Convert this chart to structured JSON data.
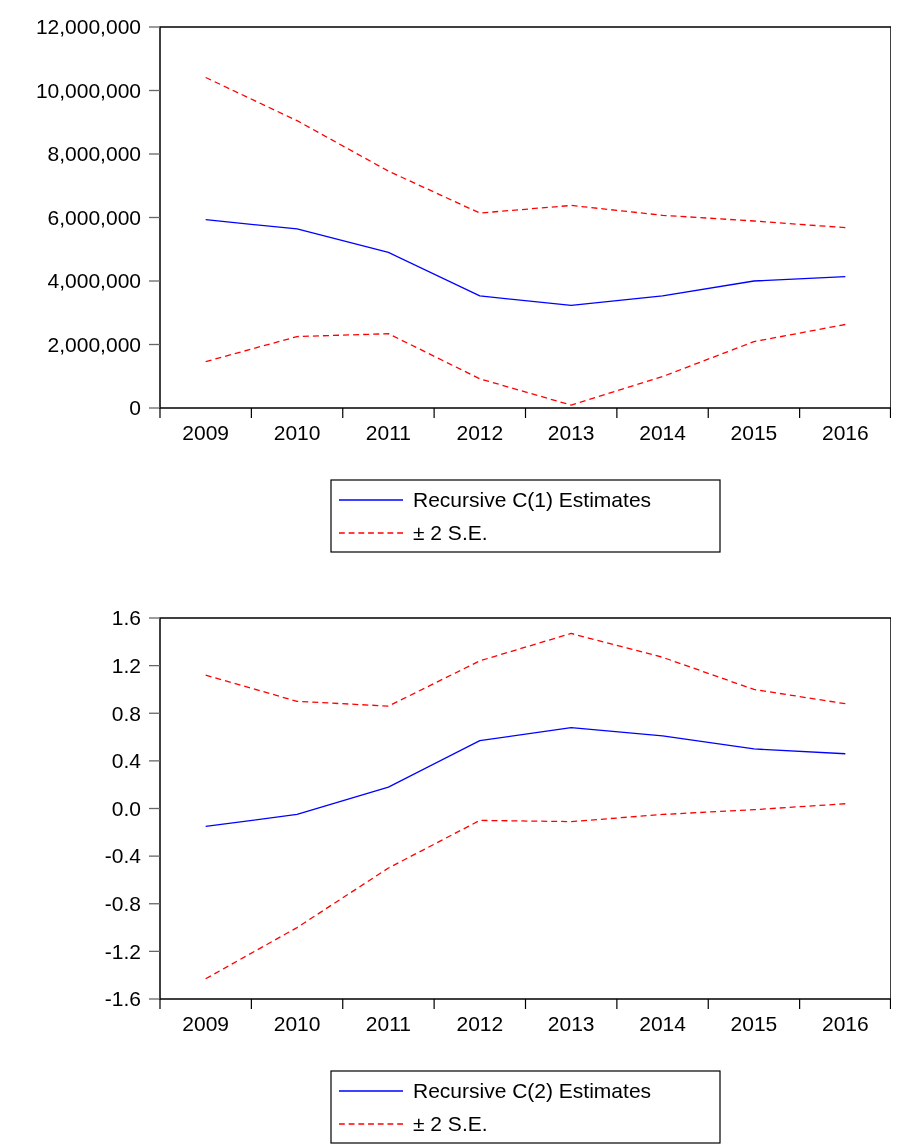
{
  "chart_data": [
    {
      "type": "line",
      "categories": [
        "2009",
        "2010",
        "2011",
        "2012",
        "2013",
        "2014",
        "2015",
        "2016"
      ],
      "ylim": [
        0,
        12000000
      ],
      "yticks": [
        0,
        {
          "value": 2000000,
          "label": "2,000,000"
        },
        {
          "value": 4000000,
          "label": "4,000,000"
        },
        {
          "value": 6000000,
          "label": "6,000,000"
        },
        {
          "value": 8000000,
          "label": "8,000,000"
        },
        {
          "value": 10000000,
          "label": "10,000,000"
        },
        {
          "value": 12000000,
          "label": "12,000,000"
        }
      ],
      "legend": "bottom",
      "series": [
        {
          "name": "Recursive C(1) Estimates",
          "color": "#0000ff",
          "line_style": "solid",
          "values": [
            5930000,
            5640000,
            4900000,
            3530000,
            3230000,
            3530000,
            4000000,
            4140000
          ]
        },
        {
          "name": "± 2 S.E.",
          "color": "#ff0000",
          "line_style": "dashed",
          "values": [
            10410000,
            9050000,
            7460000,
            6140000,
            6380000,
            6070000,
            5890000,
            5680000
          ]
        },
        {
          "color": "#ff0000",
          "line_style": "dashed",
          "values": [
            1460000,
            2250000,
            2340000,
            920000,
            90000,
            990000,
            2090000,
            2630000
          ]
        }
      ]
    },
    {
      "type": "line",
      "categories": [
        "2009",
        "2010",
        "2011",
        "2012",
        "2013",
        "2014",
        "2015",
        "2016"
      ],
      "ylim": [
        -1.6,
        1.6
      ],
      "yticks": [
        -1.6,
        -1.2,
        -0.8,
        -0.4,
        {
          "value": 0,
          "label": "0.0"
        },
        0.4,
        0.8,
        1.2,
        1.6
      ],
      "legend": "bottom",
      "series": [
        {
          "name": "Recursive C(2) Estimates",
          "color": "#0000ff",
          "line_style": "solid",
          "values": [
            -0.15,
            -0.05,
            0.18,
            0.57,
            0.68,
            0.61,
            0.5,
            0.46
          ]
        },
        {
          "name": "± 2 S.E.",
          "color": "#ff0000",
          "line_style": "dashed",
          "values": [
            1.12,
            0.9,
            0.86,
            1.24,
            1.47,
            1.27,
            1.0,
            0.88
          ]
        },
        {
          "color": "#ff0000",
          "line_style": "dashed",
          "values": [
            -1.43,
            -1.0,
            -0.5,
            -0.1,
            -0.11,
            -0.05,
            -0.01,
            0.04
          ]
        }
      ]
    }
  ]
}
